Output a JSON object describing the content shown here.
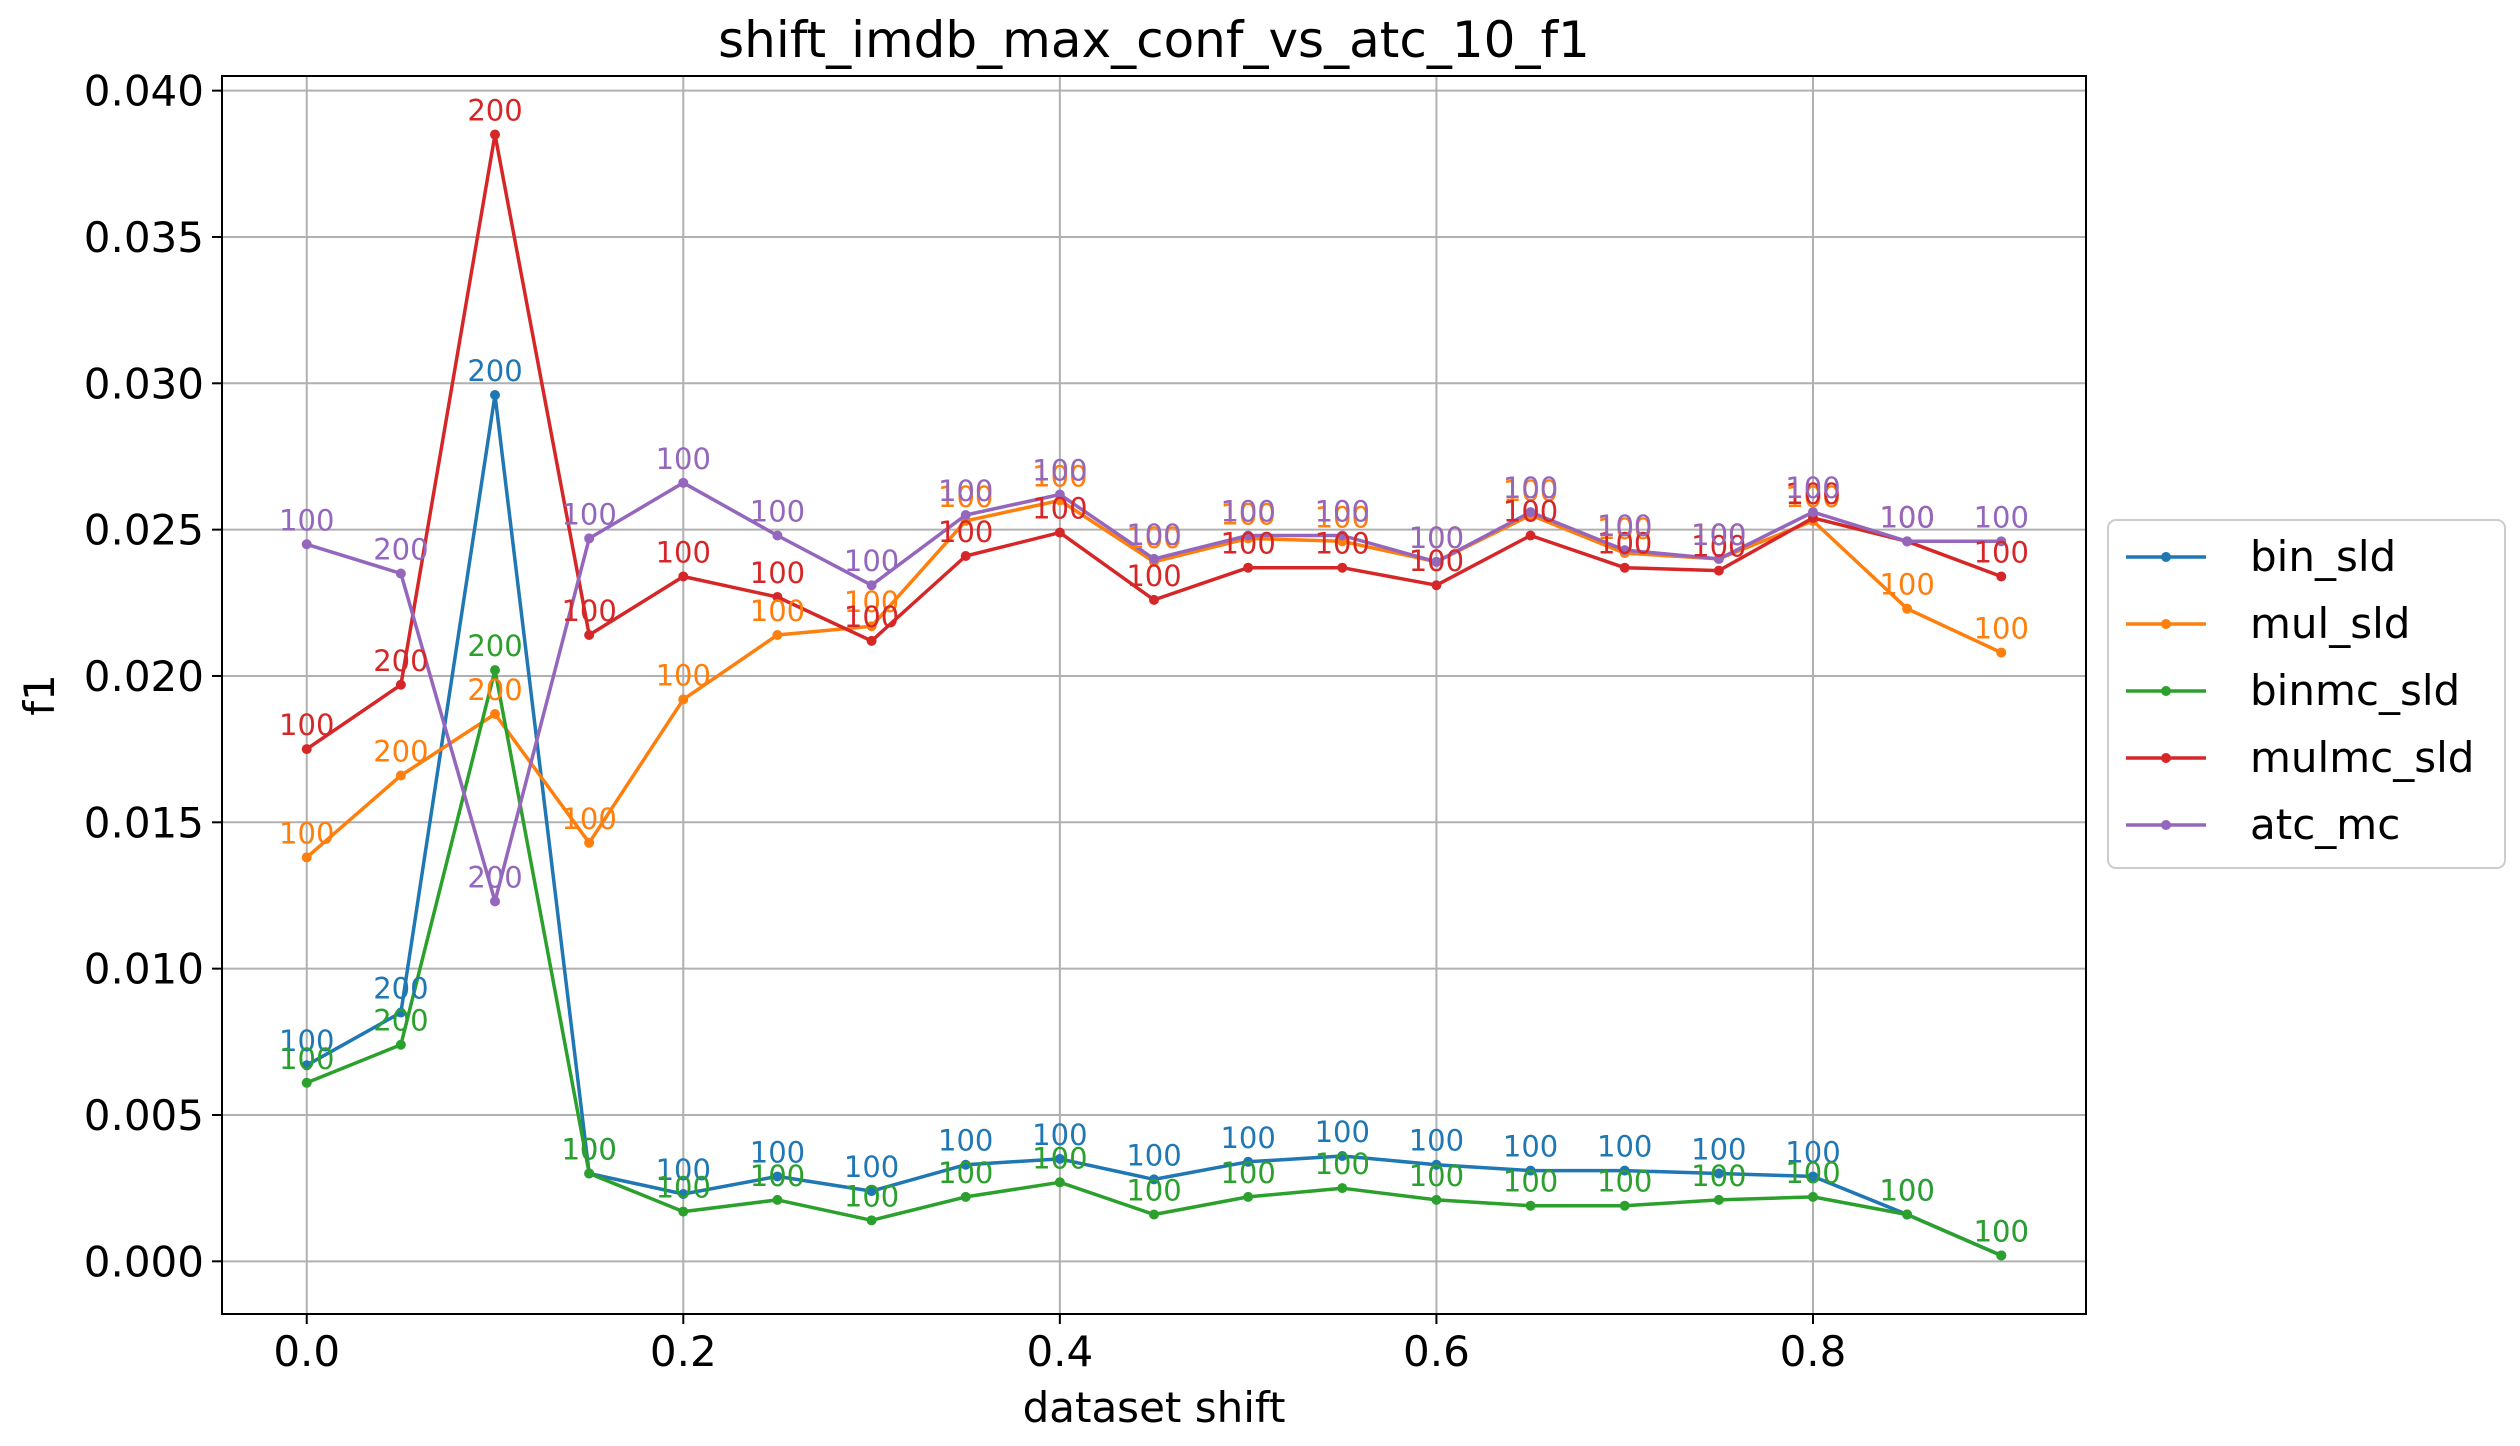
{
  "chart_data": {
    "type": "line",
    "title": "shift_imdb_max_conf_vs_atc_10_f1",
    "xlabel": "dataset shift",
    "ylabel": "f1",
    "xlim": [
      -0.045,
      0.945
    ],
    "ylim": [
      -0.0018,
      0.0405
    ],
    "xticks": [
      0.0,
      0.2,
      0.4,
      0.6,
      0.8
    ],
    "xtick_labels": [
      "0.0",
      "0.2",
      "0.4",
      "0.6",
      "0.8"
    ],
    "yticks": [
      0.0,
      0.005,
      0.01,
      0.015,
      0.02,
      0.025,
      0.03,
      0.035,
      0.04
    ],
    "ytick_labels": [
      "0.000",
      "0.005",
      "0.010",
      "0.015",
      "0.020",
      "0.025",
      "0.030",
      "0.035",
      "0.040"
    ],
    "grid": true,
    "legend_position": "center-right outside",
    "x": [
      0.0,
      0.05,
      0.1,
      0.15,
      0.2,
      0.25,
      0.3,
      0.35,
      0.4,
      0.45,
      0.5,
      0.55,
      0.6,
      0.65,
      0.7,
      0.75,
      0.8,
      0.85,
      0.9
    ],
    "series": [
      {
        "name": "bin_sld",
        "color": "#1f77b4",
        "values": [
          0.0067,
          0.0085,
          0.0296,
          0.003,
          0.0023,
          0.0029,
          0.0024,
          0.0033,
          0.0035,
          0.0028,
          0.0034,
          0.0036,
          0.0033,
          0.0031,
          0.0031,
          0.003,
          0.0029,
          0.0016,
          0.0002
        ],
        "labels": [
          "100",
          "200",
          "200",
          "100",
          "100",
          "100",
          "100",
          "100",
          "100",
          "100",
          "100",
          "100",
          "100",
          "100",
          "100",
          "100",
          "100",
          "100",
          "100"
        ]
      },
      {
        "name": "mul_sld",
        "color": "#ff7f0e",
        "values": [
          0.0138,
          0.0166,
          0.0187,
          0.0143,
          0.0192,
          0.0214,
          0.0217,
          0.0253,
          0.026,
          0.0239,
          0.0247,
          0.0246,
          0.0239,
          0.0255,
          0.0242,
          0.024,
          0.0253,
          0.0223,
          0.0208
        ],
        "labels": [
          "100",
          "200",
          "200",
          "100",
          "100",
          "100",
          "100",
          "100",
          "100",
          "100",
          "100",
          "100",
          "100",
          "100",
          "100",
          "100",
          "100",
          "100",
          "100"
        ]
      },
      {
        "name": "binmc_sld",
        "color": "#2ca02c",
        "values": [
          0.0061,
          0.0074,
          0.0202,
          0.003,
          0.0017,
          0.0021,
          0.0014,
          0.0022,
          0.0027,
          0.0016,
          0.0022,
          0.0025,
          0.0021,
          0.0019,
          0.0019,
          0.0021,
          0.0022,
          0.0016,
          0.0002
        ],
        "labels": [
          "100",
          "200",
          "200",
          "100",
          "100",
          "100",
          "100",
          "100",
          "100",
          "100",
          "100",
          "100",
          "100",
          "100",
          "100",
          "100",
          "100",
          "100",
          "100"
        ]
      },
      {
        "name": "mulmc_sld",
        "color": "#d62728",
        "values": [
          0.0175,
          0.0197,
          0.0385,
          0.0214,
          0.0234,
          0.0227,
          0.0212,
          0.0241,
          0.0249,
          0.0226,
          0.0237,
          0.0237,
          0.0231,
          0.0248,
          0.0237,
          0.0236,
          0.0254,
          0.0246,
          0.0234
        ],
        "labels": [
          "100",
          "200",
          "200",
          "100",
          "100",
          "100",
          "100",
          "100",
          "100",
          "100",
          "100",
          "100",
          "100",
          "100",
          "100",
          "100",
          "100",
          "100",
          "100"
        ]
      },
      {
        "name": "atc_mc",
        "color": "#9467bd",
        "values": [
          0.0245,
          0.0235,
          0.0123,
          0.0247,
          0.0266,
          0.0248,
          0.0231,
          0.0255,
          0.0262,
          0.024,
          0.0248,
          0.0248,
          0.0239,
          0.0256,
          0.0243,
          0.024,
          0.0256,
          0.0246,
          0.0246
        ],
        "labels": [
          "100",
          "200",
          "200",
          "100",
          "100",
          "100",
          "100",
          "100",
          "100",
          "100",
          "100",
          "100",
          "100",
          "100",
          "100",
          "100",
          "100",
          "100",
          "100"
        ]
      }
    ]
  }
}
